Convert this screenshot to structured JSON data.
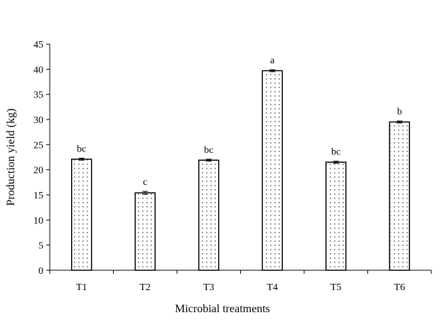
{
  "chart_data": {
    "type": "bar",
    "title": "",
    "xlabel": "Microbial treatments",
    "ylabel": "Production yield (kg)",
    "ylim": [
      0,
      45
    ],
    "yticks": [
      0,
      5,
      10,
      15,
      20,
      25,
      30,
      35,
      40,
      45
    ],
    "categories": [
      "T1",
      "T2",
      "T3",
      "T4",
      "T5",
      "T6"
    ],
    "values": [
      22.1,
      15.4,
      21.9,
      39.7,
      21.5,
      29.5
    ],
    "errors": [
      0.2,
      0.3,
      0.2,
      0.2,
      0.2,
      0.2
    ],
    "labels": [
      "bc",
      "c",
      "bc",
      "a",
      "bc",
      "b"
    ],
    "grid": false,
    "legend": "none",
    "bar_fill": "dotted",
    "colors": {
      "bar_edge": "#000000",
      "dot": "#000000",
      "background": "#ffffff"
    }
  }
}
